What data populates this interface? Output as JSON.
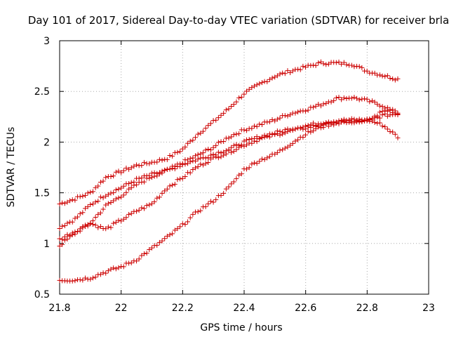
{
  "chart_data": {
    "type": "scatter",
    "title": "Day 101 of 2017, Sidereal Day-to-day VTEC variation (SDTVAR) for receiver brla",
    "xlabel": "GPS time / hours",
    "ylabel": "SDTVAR / TECUs",
    "xlim": [
      21.8,
      23.0
    ],
    "ylim": [
      0.5,
      3.0
    ],
    "xticks": [
      21.8,
      22.0,
      22.2,
      22.4,
      22.6,
      22.8,
      23.0
    ],
    "xtick_labels": [
      "21.8",
      "22",
      "22.2",
      "22.4",
      "22.6",
      "22.8",
      "23"
    ],
    "yticks": [
      0.5,
      1.0,
      1.5,
      2.0,
      2.5,
      3.0
    ],
    "ytick_labels": [
      "0.5",
      "1",
      "1.5",
      "2",
      "2.5",
      "3"
    ],
    "grid": true,
    "marker": "+",
    "marker_color": "#cc0000",
    "x_start": 21.8,
    "x_end": 22.9,
    "x_step": 0.00833,
    "series": [
      {
        "name": "series 1",
        "x": [
          21.8,
          21.85,
          21.9,
          21.95,
          22.0,
          22.05,
          22.1,
          22.15,
          22.2,
          22.25,
          22.3,
          22.35,
          22.4,
          22.45,
          22.5,
          22.55,
          22.6,
          22.65,
          22.7,
          22.75,
          22.8,
          22.85,
          22.9
        ],
        "y": [
          1.39,
          1.44,
          1.5,
          1.65,
          1.71,
          1.77,
          1.8,
          1.84,
          1.93,
          2.08,
          2.2,
          2.33,
          2.48,
          2.57,
          2.65,
          2.7,
          2.74,
          2.78,
          2.78,
          2.77,
          2.7,
          2.66,
          2.62
        ]
      },
      {
        "name": "series 2",
        "x": [
          21.8,
          21.85,
          21.9,
          21.95,
          22.0,
          22.05,
          22.1,
          22.15,
          22.2,
          22.25,
          22.3,
          22.35,
          22.4,
          22.45,
          22.5,
          22.55,
          22.6,
          22.65,
          22.7,
          22.75,
          22.8,
          22.85,
          22.9
        ],
        "y": [
          1.16,
          1.24,
          1.38,
          1.48,
          1.55,
          1.63,
          1.68,
          1.72,
          1.8,
          1.87,
          1.95,
          2.05,
          2.12,
          2.17,
          2.22,
          2.28,
          2.32,
          2.37,
          2.43,
          2.44,
          2.41,
          2.36,
          2.28
        ]
      },
      {
        "name": "series 3",
        "x": [
          21.8,
          21.85,
          21.9,
          21.95,
          22.0,
          22.05,
          22.1,
          22.15,
          22.2,
          22.25,
          22.3,
          22.35,
          22.4,
          22.45,
          22.5,
          22.55,
          22.6,
          22.65,
          22.7,
          22.75,
          22.8,
          22.85,
          22.9
        ],
        "y": [
          0.98,
          1.1,
          1.2,
          1.37,
          1.47,
          1.58,
          1.66,
          1.72,
          1.78,
          1.83,
          1.88,
          1.93,
          2.0,
          2.05,
          2.09,
          2.13,
          2.16,
          2.19,
          2.21,
          2.22,
          2.22,
          2.17,
          2.05
        ]
      },
      {
        "name": "series 4",
        "x": [
          21.8,
          21.85,
          21.9,
          21.95,
          22.0,
          22.05,
          22.1,
          22.15,
          22.2,
          22.25,
          22.3,
          22.35,
          22.4,
          22.45,
          22.5,
          22.55,
          22.6,
          22.65,
          22.7,
          22.75,
          22.8,
          22.85,
          22.9
        ],
        "y": [
          1.04,
          1.12,
          1.2,
          1.14,
          1.23,
          1.32,
          1.39,
          1.55,
          1.65,
          1.76,
          1.84,
          1.9,
          1.97,
          2.03,
          2.07,
          2.11,
          2.14,
          2.17,
          2.2,
          2.2,
          2.21,
          2.26,
          2.28
        ]
      },
      {
        "name": "series 5",
        "x": [
          21.8,
          21.85,
          21.9,
          21.95,
          22.0,
          22.05,
          22.1,
          22.15,
          22.2,
          22.25,
          22.3,
          22.35,
          22.4,
          22.45,
          22.5,
          22.55,
          22.6,
          22.65,
          22.7,
          22.75,
          22.8,
          22.85,
          22.9
        ],
        "y": [
          0.64,
          0.64,
          0.66,
          0.72,
          0.77,
          0.84,
          0.95,
          1.06,
          1.18,
          1.32,
          1.42,
          1.55,
          1.73,
          1.82,
          1.88,
          1.98,
          2.08,
          2.15,
          2.19,
          2.2,
          2.2,
          2.3,
          2.3
        ]
      }
    ]
  }
}
